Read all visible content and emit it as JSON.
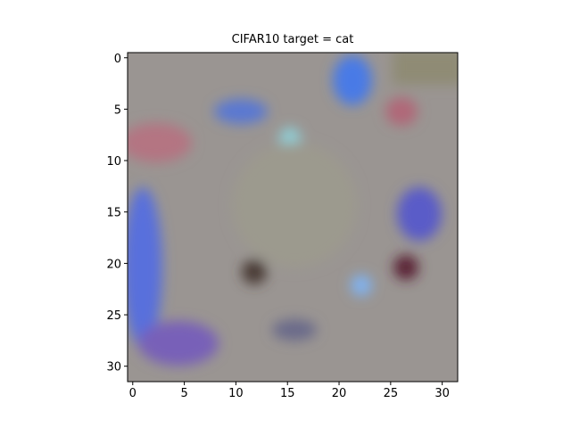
{
  "chart_data": {
    "type": "image",
    "title": "CIFAR10 target = cat",
    "xlim": [
      -0.5,
      31.5
    ],
    "ylim": [
      31.5,
      -0.5
    ],
    "xticks": [
      0,
      5,
      10,
      15,
      20,
      25,
      30
    ],
    "yticks": [
      0,
      5,
      10,
      15,
      20,
      25,
      30
    ]
  }
}
